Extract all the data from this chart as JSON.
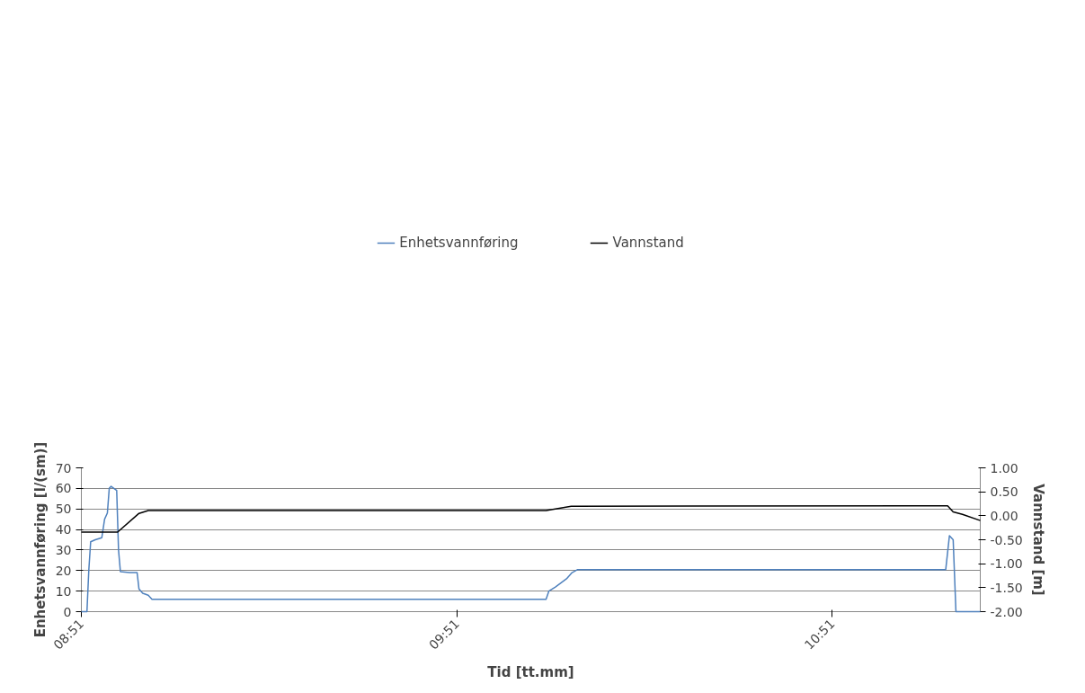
{
  "chart_data": {
    "type": "line",
    "xlabel": "Tid [tt.mm]",
    "ylabel": "Enhetsvannføring [l/(sm)]",
    "y2label": "Vannstand [m]",
    "xlim": [
      8.85,
      11.244
    ],
    "xticks": [
      {
        "value": 8.85,
        "label": "08:51"
      },
      {
        "value": 9.85,
        "label": "09:51"
      },
      {
        "value": 10.85,
        "label": "10:51"
      }
    ],
    "ylim": [
      0,
      70
    ],
    "yticks": [
      0,
      10,
      20,
      30,
      40,
      50,
      60,
      70
    ],
    "y2lim": [
      -2,
      1
    ],
    "y2ticks": [
      {
        "value": -2,
        "label": "-2.00"
      },
      {
        "value": -1.5,
        "label": "-1.50"
      },
      {
        "value": -1,
        "label": "-1.00"
      },
      {
        "value": -0.5,
        "label": "-0.50"
      },
      {
        "value": 0,
        "label": "0.00"
      },
      {
        "value": 0.5,
        "label": "0.50"
      },
      {
        "value": 1,
        "label": "1.00"
      }
    ],
    "grid": "y",
    "legend": "top",
    "marker": "none",
    "line_style": "solid",
    "series": [
      {
        "name": "Enhetsvannføring",
        "color": "#4f81bd",
        "x": [
          8.85,
          8.8649,
          8.8698,
          8.8748,
          8.8871,
          8.9045,
          8.9119,
          8.9193,
          8.9243,
          8.9292,
          8.9441,
          8.949,
          8.954,
          8.9787,
          8.9985,
          9.0035,
          9.0134,
          9.0282,
          9.0381,
          9.1767,
          9.4243,
          9.6718,
          9.9193,
          10.0876,
          10.095,
          10.1124,
          10.1421,
          10.1569,
          10.1718,
          10.4144,
          10.6619,
          10.9094,
          11.152,
          11.1619,
          11.1718,
          11.1792,
          11.244
        ],
        "values": [
          0,
          0,
          20,
          34,
          35,
          36,
          45,
          48,
          60,
          61,
          59,
          30,
          19.5,
          19,
          19,
          11,
          9,
          8,
          6,
          6,
          6,
          6,
          6,
          6,
          10,
          12,
          16,
          19,
          20.5,
          20.5,
          20.5,
          20.5,
          20.5,
          37,
          35,
          0,
          0
        ]
      },
      {
        "name": "Vannstand",
        "color": "#000000",
        "axis": "y2",
        "x": [
          8.85,
          8.9465,
          9.0035,
          9.0282,
          10.0876,
          10.1545,
          11.157,
          11.1718,
          11.1965,
          11.244
        ],
        "values": [
          -0.34,
          -0.34,
          0.05,
          0.11,
          0.11,
          0.2,
          0.21,
          0.08,
          0.03,
          -0.1
        ]
      }
    ]
  }
}
